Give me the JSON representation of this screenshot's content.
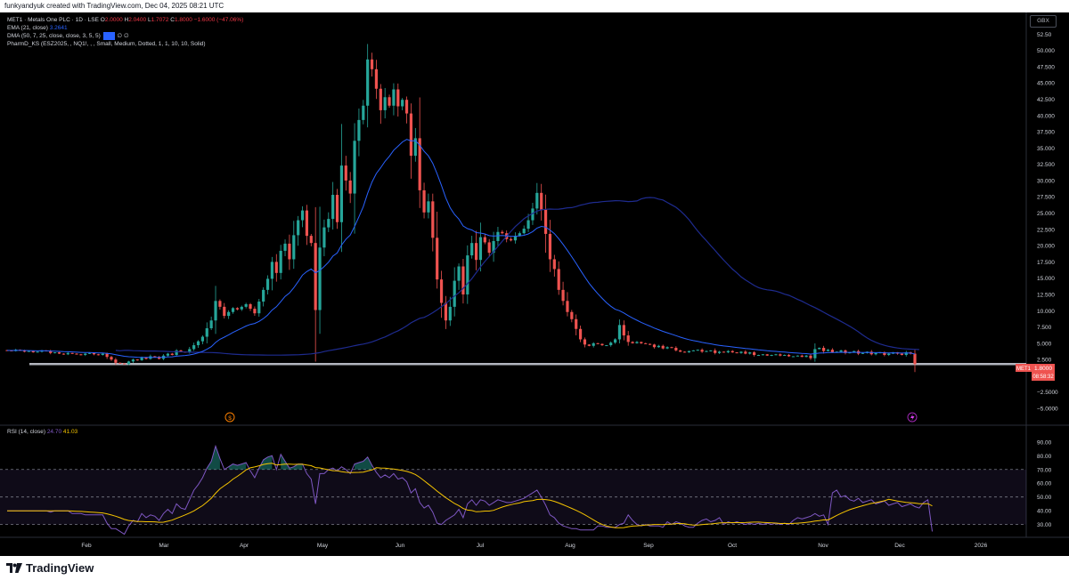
{
  "header": {
    "credit": "funkyandyuk created with TradingView.com, Dec 04, 2025 08:21 UTC"
  },
  "brand": {
    "name": "TradingView",
    "logo_icon": "tradingview-logo-icon"
  },
  "currency": "GBX",
  "legend": {
    "symbol": "MET1 · Metals One PLC · 1D · LSE",
    "o_label": "O",
    "o_value": "2.0000",
    "h_label": "H",
    "h_value": "2.0400",
    "l_label": "L",
    "l_value": "1.7072",
    "c_label": "C",
    "c_value": "1.8000",
    "change": "−1.6000 (−47.06%)",
    "ema_label": "EMA (21, close)",
    "ema_value": "3.2641",
    "dma_label": "DMA (50, 7, 25, close, close, 3, 5, 5)",
    "dma_value": "3.5",
    "dma_na1": "∅",
    "dma_na2": "∅",
    "pharm_label": "PharmD_KS (ESZ2025, , NQ1!, , , Small, Medium, Dotted, 1, 1, 10, 10, Solid)"
  },
  "price_tag": {
    "symbol": "MET1",
    "price": "1.8000",
    "countdown": "08:58:32"
  },
  "rsi_legend": {
    "label": "RSI (14, close)",
    "v1": "24.70",
    "v2": "41.03"
  },
  "colors": {
    "up": "#26a69a",
    "down": "#ef5350",
    "ema": "#2962ff",
    "dma": "#1e2b8f",
    "rsi": "#7e57c2",
    "rsi_ma": "#f5c400",
    "hline": "#b2b5be"
  },
  "chart_data": [
    {
      "type": "candlestick",
      "title": "MET1 · Metals One PLC · 1D · LSE",
      "y_ticks": [
        "52.50",
        "50.000",
        "47.500",
        "45.000",
        "42.500",
        "40.000",
        "37.500",
        "35.000",
        "32.500",
        "30.000",
        "27.500",
        "25.000",
        "22.500",
        "20.000",
        "17.500",
        "15.000",
        "12.500",
        "10.000",
        "7.500",
        "5.000",
        "2.500",
        "0.0000",
        "−2.5000",
        "−5.0000"
      ],
      "x_ticks": [
        "Feb",
        "Mar",
        "Apr",
        "May",
        "Jun",
        "Jul",
        "Aug",
        "Sep",
        "Oct",
        "Nov",
        "Dec",
        "2026"
      ],
      "ylim": [
        -6.5,
        55
      ],
      "horizontal_line": 1.8,
      "grid": false,
      "close": [
        3.9,
        3.8,
        4.0,
        3.9,
        3.7,
        3.8,
        3.6,
        3.7,
        3.9,
        3.8,
        3.5,
        3.6,
        3.4,
        3.3,
        3.5,
        3.4,
        3.3,
        3.2,
        3.4,
        3.5,
        3.3,
        3.2,
        3.4,
        2.9,
        2.5,
        2.0,
        1.9,
        1.8,
        2.2,
        2.5,
        2.4,
        2.8,
        2.6,
        3.0,
        2.9,
        2.6,
        3.1,
        3.4,
        3.2,
        3.9,
        3.7,
        3.6,
        4.1,
        4.7,
        5.3,
        6.0,
        7.3,
        8.5,
        11.5,
        10.6,
        9.2,
        9.8,
        10.4,
        10.2,
        10.6,
        11.0,
        10.3,
        9.6,
        11.4,
        13.2,
        14.9,
        17.5,
        15.8,
        19.2,
        20.3,
        17.9,
        21.6,
        23.9,
        25.4,
        21.5,
        20.4,
        10.1,
        19.7,
        22.8,
        24.1,
        27.8,
        23.6,
        32.3,
        30.0,
        28.0,
        36.1,
        39.3,
        41.5,
        48.6,
        47.1,
        44.1,
        40.8,
        42.8,
        41.5,
        44.0,
        41.4,
        42.4,
        40.3,
        33.8,
        36.5,
        28.5,
        25.1,
        26.8,
        21.2,
        14.8,
        11.2,
        8.5,
        10.6,
        14.6,
        16.8,
        12.5,
        18.5,
        20.4,
        17.8,
        21.3,
        20.5,
        18.9,
        20.7,
        22.1,
        21.9,
        21.0,
        20.8,
        21.5,
        21.9,
        22.6,
        23.9,
        25.7,
        28.1,
        25.5,
        21.8,
        17.9,
        16.4,
        13.2,
        11.5,
        9.8,
        8.7,
        7.2,
        5.6,
        4.8,
        4.6,
        5.0,
        4.9,
        4.7,
        4.7,
        5.1,
        5.6,
        7.8,
        6.2,
        5.2,
        5.0,
        5.2,
        5.0,
        4.9,
        4.8,
        4.4,
        4.6,
        4.2,
        4.4,
        4.3,
        3.9,
        3.7,
        3.6,
        3.8,
        3.9,
        4.0,
        3.7,
        3.8,
        3.9,
        3.5,
        3.7,
        3.6,
        3.8,
        3.6,
        3.5,
        3.7,
        3.4,
        3.6,
        3.2,
        3.2,
        3.3,
        3.1,
        3.2,
        3.3,
        3.1,
        3.2,
        3.0,
        3.0,
        3.1,
        2.9,
        3.1,
        2.7,
        4.1,
        4.3,
        3.8,
        4.0,
        3.6,
        3.7,
        3.9,
        3.5,
        3.6,
        3.8,
        3.4,
        3.5,
        3.7,
        3.3,
        3.5,
        3.6,
        3.2,
        3.4,
        3.6,
        3.4,
        3.2,
        3.6,
        3.4,
        1.8
      ],
      "ema_period": 21,
      "dma_period": 50,
      "dma_shift": 25
    },
    {
      "type": "line",
      "title": "RSI (14, close)",
      "y_ticks": [
        "90.00",
        "80.00",
        "70.00",
        "60.00",
        "50.00",
        "40.00",
        "30.00"
      ],
      "levels": [
        70,
        50,
        30
      ],
      "ylim": [
        22,
        97
      ],
      "x_ticks": [
        "Feb",
        "Mar",
        "Apr",
        "May",
        "Jun",
        "Jul",
        "Aug",
        "Sep",
        "Oct",
        "Nov",
        "Dec",
        "2026"
      ],
      "series": [
        {
          "name": "RSI",
          "values": [
            40,
            40,
            40,
            40,
            40,
            40,
            40,
            40,
            40,
            40,
            39,
            40,
            40,
            40,
            40,
            38,
            38,
            38,
            37,
            37,
            37,
            37,
            37,
            31,
            27,
            27,
            25,
            23,
            29,
            33,
            32,
            38,
            35,
            37,
            36,
            33,
            38,
            41,
            38,
            45,
            42,
            41,
            48,
            55,
            59,
            64,
            71,
            76,
            87,
            78,
            70,
            72,
            74,
            73,
            74,
            75,
            69,
            64,
            71,
            77,
            79,
            80,
            70,
            81,
            76,
            71,
            72,
            74,
            74,
            67,
            63,
            45,
            67,
            67,
            70,
            71,
            69,
            72,
            70,
            67,
            74,
            75,
            76,
            79,
            73,
            68,
            64,
            66,
            64,
            67,
            63,
            64,
            61,
            53,
            56,
            46,
            42,
            44,
            39,
            31,
            30,
            33,
            35,
            37,
            41,
            35,
            45,
            48,
            44,
            48,
            47,
            44,
            46,
            48,
            47,
            46,
            46,
            47,
            48,
            49,
            51,
            53,
            55,
            50,
            44,
            37,
            35,
            31,
            29,
            28,
            27,
            27,
            26,
            26,
            26,
            26,
            29,
            29,
            28,
            28,
            28,
            30,
            31,
            37,
            33,
            30,
            29,
            30,
            29,
            29,
            29,
            28,
            32,
            30,
            32,
            31,
            29,
            28,
            28,
            31,
            33,
            34,
            32,
            33,
            35,
            30,
            32,
            31,
            32,
            31,
            30,
            31,
            30,
            31,
            30,
            31,
            30,
            31,
            30,
            31,
            30,
            33,
            35,
            34,
            35,
            36,
            38,
            36,
            37,
            30,
            53,
            55,
            50,
            51,
            48,
            47,
            49,
            46,
            47,
            48,
            45,
            46,
            47,
            44,
            45,
            46,
            43,
            44,
            45,
            43,
            42,
            46,
            48,
            25
          ]
        },
        {
          "name": "RSI-based MA",
          "values": []
        }
      ]
    }
  ]
}
